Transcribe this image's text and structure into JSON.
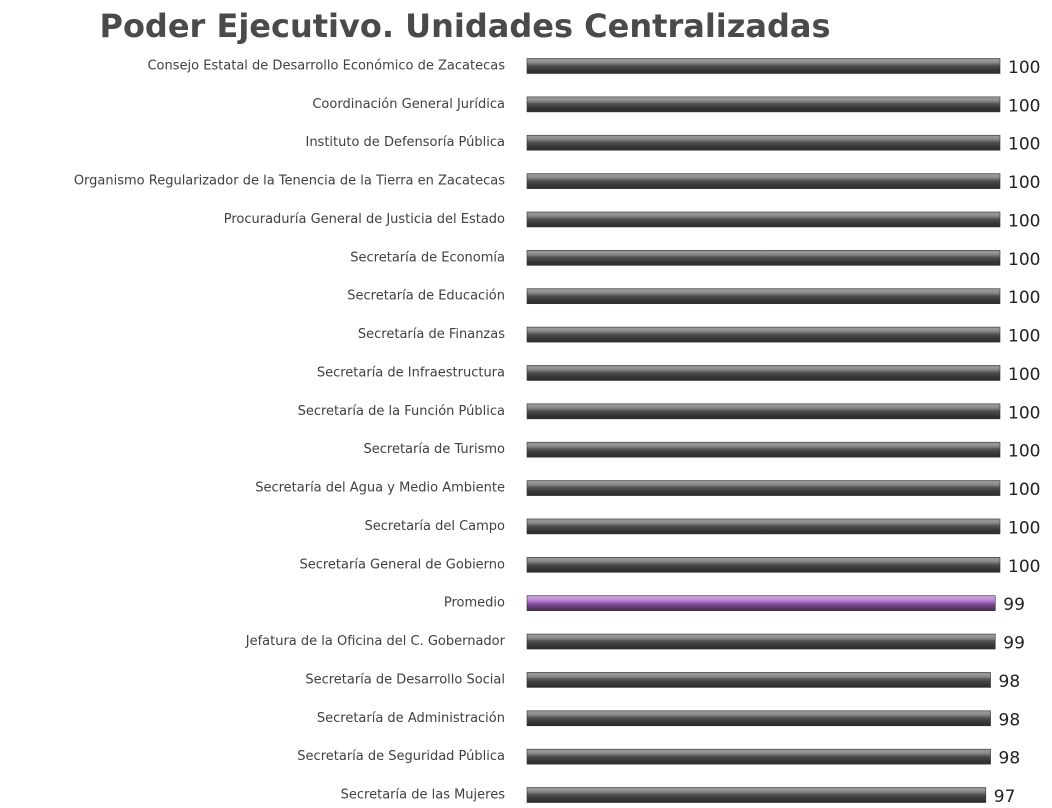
{
  "chart_data": {
    "type": "hbar",
    "title": "Poder Ejecutivo. Unidades Centralizadas",
    "categories": [
      "Consejo Estatal de Desarrollo Económico de Zacatecas",
      "Coordinación General Jurídica",
      "Instituto de Defensoría Pública",
      "Organismo Regularizador de la Tenencia de la Tierra en Zacatecas",
      "Procuraduría General de Justicia del Estado",
      "Secretaría de Economía",
      "Secretaría de Educación",
      "Secretaría de Finanzas",
      "Secretaría de Infraestructura",
      "Secretaría de la Función Pública",
      "Secretaría de Turismo",
      "Secretaría del Agua y Medio Ambiente",
      "Secretaría del Campo",
      "Secretaría General de Gobierno",
      "Promedio",
      "Jefatura de la Oficina del C. Gobernador",
      "Secretaría de Desarrollo Social",
      "Secretaría de Administración",
      "Secretaría de Seguridad Pública",
      "Secretaría de las Mujeres"
    ],
    "values": [
      100,
      100,
      100,
      100,
      100,
      100,
      100,
      100,
      100,
      100,
      100,
      100,
      100,
      100,
      99,
      99,
      98,
      98,
      98,
      97
    ],
    "colors": [
      "#555555",
      "#555555",
      "#555555",
      "#555555",
      "#555555",
      "#555555",
      "#555555",
      "#555555",
      "#555555",
      "#555555",
      "#555555",
      "#555555",
      "#555555",
      "#555555",
      "#a05cc0",
      "#555555",
      "#555555",
      "#555555",
      "#555555",
      "#555555"
    ],
    "xlim": [
      0,
      100
    ]
  }
}
